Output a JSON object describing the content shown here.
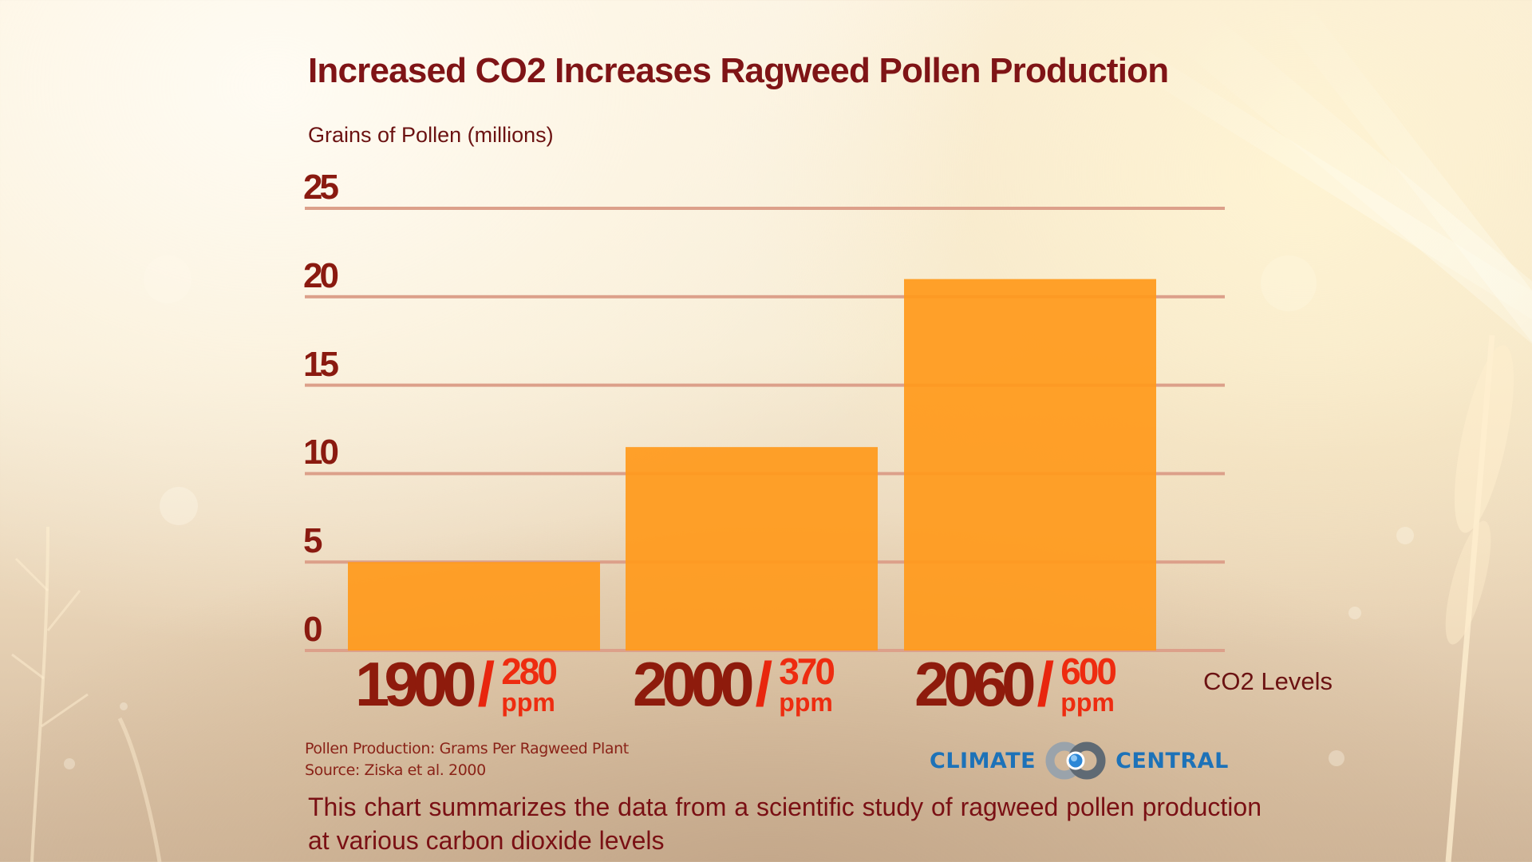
{
  "chart_data": {
    "type": "bar",
    "title": "Increased CO2 Increases Ragweed Pollen Production",
    "ylabel": "Grains of Pollen (millions)",
    "xlabel": "CO2 Levels",
    "ylim": [
      0,
      25
    ],
    "yticks": [
      0,
      5,
      10,
      15,
      20,
      25
    ],
    "grid": true,
    "categories": [
      {
        "year": "1900",
        "separator": "/",
        "ppm_value": "280",
        "ppm_unit": "ppm"
      },
      {
        "year": "2000",
        "separator": "/",
        "ppm_value": "370",
        "ppm_unit": "ppm"
      },
      {
        "year": "2060",
        "separator": "/",
        "ppm_value": "600",
        "ppm_unit": "ppm"
      }
    ],
    "values": [
      5,
      11.5,
      21
    ],
    "bar_color": "#ff9a1c",
    "grid_color": "#dca08a"
  },
  "footer": {
    "note": "Pollen Production: Grams Per Ragweed Plant",
    "source": "Source: Ziska et al. 2000"
  },
  "logo": {
    "left_word": "CLIMATE",
    "right_word": "CENTRAL",
    "color": "#1d72b8"
  },
  "caption": "This chart summarizes the data from a scientific study of ragweed pollen production at various carbon dioxide levels"
}
